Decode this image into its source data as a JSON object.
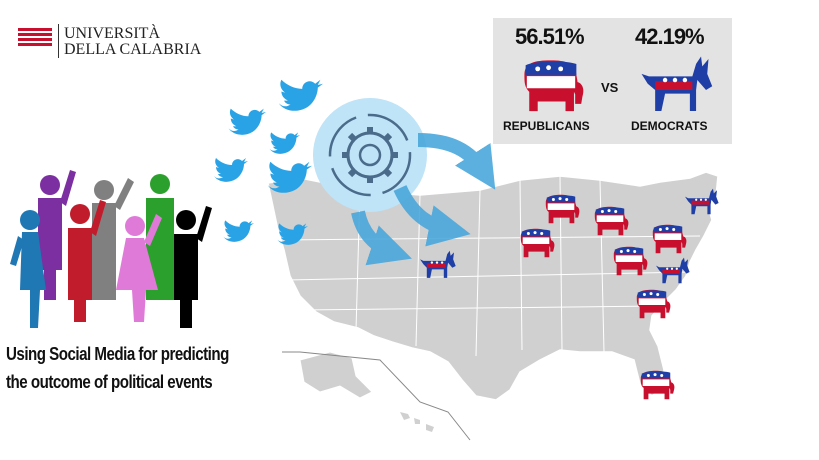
{
  "logo": {
    "line1": "UNIVERSITÀ",
    "line2": "DELLA CALABRIA",
    "brand_color": "#c8102e"
  },
  "results": {
    "republicans": {
      "percent": "56.51%",
      "label": "REPUBLICANS",
      "color": "#c8102e",
      "icon": "elephant-icon"
    },
    "democrats": {
      "percent": "42.19%",
      "label": "DEMOCRATS",
      "color": "#1f3fa6",
      "icon": "donkey-icon"
    },
    "vs_label": "VS"
  },
  "caption": {
    "line1": "Using Social Media for predicting",
    "line2": "the outcome of political events"
  },
  "colors": {
    "tweet_bird": "#2aa3e6",
    "gear_circle": "#bfe3f7",
    "arrows": "#4aa8dc",
    "map": "#d0d0d0",
    "people": [
      "#1f77b4",
      "#7b2fa0",
      "#c01c2c",
      "#808080",
      "#2ca02c",
      "#e07ad8",
      "#000000"
    ]
  }
}
